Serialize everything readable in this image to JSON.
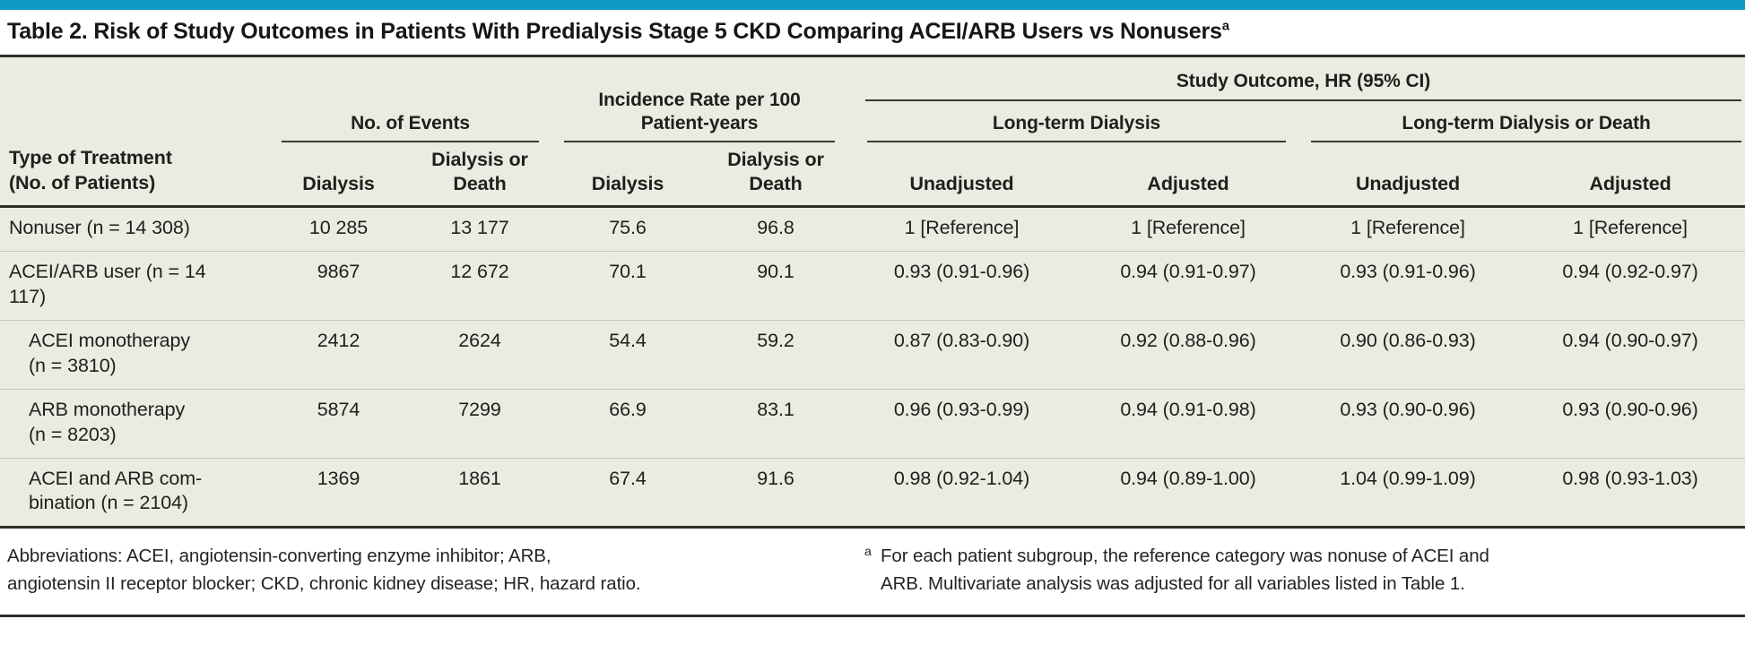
{
  "accent_color": "#0D9BC4",
  "title": {
    "text": "Table 2. Risk of Study Outcomes in Patients With Predialysis Stage 5 CKD Comparing ACEI/ARB Users vs Nonusers",
    "superscript": "a"
  },
  "table": {
    "row_header": "Type of Treatment\n(No. of Patients)",
    "groups": {
      "events": "No. of Events",
      "incidence": "Incidence Rate per 100\nPatient-years",
      "outcome": "Study Outcome, HR (95% CI)",
      "long_term_dialysis": "Long-term Dialysis",
      "long_term_dialysis_or_death": "Long-term Dialysis or Death"
    },
    "subheaders": [
      "Dialysis",
      "Dialysis or\nDeath",
      "Dialysis",
      "Dialysis or\nDeath",
      "Unadjusted",
      "Adjusted",
      "Unadjusted",
      "Adjusted"
    ],
    "rows": [
      {
        "label": "Nonuser (n = 14 308)",
        "indent": false,
        "values": [
          "10 285",
          "13 177",
          "75.6",
          "96.8",
          "1 [Reference]",
          "1 [Reference]",
          "1 [Reference]",
          "1 [Reference]"
        ]
      },
      {
        "label": "ACEI/ARB user (n = 14\n117)",
        "indent": false,
        "values": [
          "9867",
          "12 672",
          "70.1",
          "90.1",
          "0.93 (0.91-0.96)",
          "0.94 (0.91-0.97)",
          "0.93 (0.91-0.96)",
          "0.94 (0.92-0.97)"
        ]
      },
      {
        "label": "ACEI monotherapy\n(n = 3810)",
        "indent": true,
        "values": [
          "2412",
          "2624",
          "54.4",
          "59.2",
          "0.87 (0.83-0.90)",
          "0.92 (0.88-0.96)",
          "0.90 (0.86-0.93)",
          "0.94 (0.90-0.97)"
        ]
      },
      {
        "label": "ARB monotherapy\n(n = 8203)",
        "indent": true,
        "values": [
          "5874",
          "7299",
          "66.9",
          "83.1",
          "0.96 (0.93-0.99)",
          "0.94 (0.91-0.98)",
          "0.93 (0.90-0.96)",
          "0.93 (0.90-0.96)"
        ]
      },
      {
        "label": "ACEI and ARB com-\nbination (n = 2104)",
        "indent": true,
        "values": [
          "1369",
          "1861",
          "67.4",
          "91.6",
          "0.98 (0.92-1.04)",
          "0.94 (0.89-1.00)",
          "1.04 (0.99-1.09)",
          "0.98 (0.93-1.03)"
        ]
      }
    ]
  },
  "footer": {
    "abbreviations": "Abbreviations: ACEI, angiotensin-converting enzyme inhibitor; ARB,\nangiotensin II receptor blocker; CKD, chronic kidney disease; HR, hazard ratio.",
    "footnote_marker": "a",
    "footnote": "For each patient subgroup, the reference category was nonuse of ACEI and\nARB. Multivariate analysis was adjusted for all variables listed in Table 1."
  }
}
